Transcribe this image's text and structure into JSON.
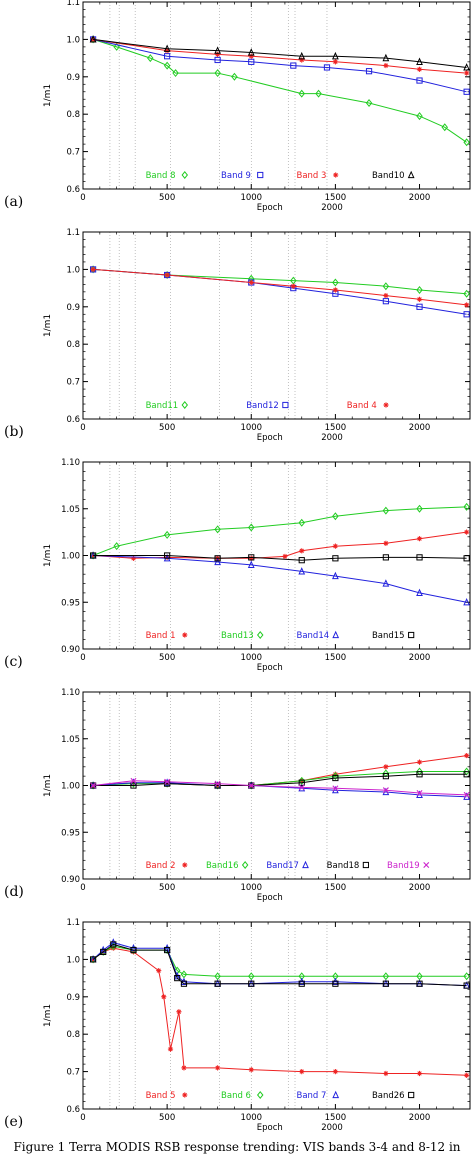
{
  "caption": "Figure 1 Terra MODIS RSB response trending: VIS bands 3-4 and 8-12 in",
  "chart_data": [
    {
      "id": "a",
      "type": "line",
      "panel_label": "(a)",
      "ylabel": "1/m1",
      "xlabel": "Epoch",
      "xlabel_extra": "2000",
      "xlim": [
        0,
        2300
      ],
      "ylim": [
        0.6,
        1.1
      ],
      "xticks": [
        0,
        500,
        1000,
        1500,
        2000
      ],
      "yticks": [
        0.6,
        0.7,
        0.8,
        0.9,
        1.0,
        1.1
      ],
      "ytick_labels": [
        "0.6",
        "0.7",
        "0.8",
        "0.9",
        "1.0",
        "1.1"
      ],
      "event_lines": [
        160,
        215,
        310,
        520,
        810,
        1000,
        1220,
        1260,
        1450
      ],
      "legend_position": "bottom-inside",
      "series": [
        {
          "name": "Band 8",
          "color": "#22cc22",
          "marker": "diamond",
          "x": [
            60,
            200,
            400,
            500,
            550,
            800,
            900,
            1300,
            1400,
            1700,
            2000,
            2150,
            2280
          ],
          "y": [
            1.0,
            0.98,
            0.95,
            0.93,
            0.91,
            0.91,
            0.9,
            0.855,
            0.855,
            0.83,
            0.795,
            0.765,
            0.725
          ]
        },
        {
          "name": "Band 9",
          "color": "#2222dd",
          "marker": "square",
          "x": [
            60,
            500,
            800,
            1000,
            1250,
            1450,
            1700,
            2000,
            2280
          ],
          "y": [
            1.0,
            0.955,
            0.945,
            0.94,
            0.93,
            0.925,
            0.915,
            0.89,
            0.86
          ]
        },
        {
          "name": "Band 3",
          "color": "#ee2222",
          "marker": "star",
          "x": [
            60,
            500,
            800,
            1000,
            1300,
            1500,
            1800,
            2000,
            2280
          ],
          "y": [
            1.0,
            0.97,
            0.96,
            0.955,
            0.945,
            0.94,
            0.93,
            0.92,
            0.91
          ]
        },
        {
          "name": "Band10",
          "color": "#000000",
          "marker": "triangle",
          "x": [
            60,
            500,
            800,
            1000,
            1300,
            1500,
            1800,
            2000,
            2280
          ],
          "y": [
            1.0,
            0.975,
            0.97,
            0.965,
            0.955,
            0.955,
            0.95,
            0.94,
            0.925
          ]
        }
      ]
    },
    {
      "id": "b",
      "type": "line",
      "panel_label": "(b)",
      "ylabel": "1/m1",
      "xlabel": "Epoch",
      "xlabel_extra": "2000",
      "xlim": [
        0,
        2300
      ],
      "ylim": [
        0.6,
        1.1
      ],
      "xticks": [
        0,
        500,
        1000,
        1500,
        2000
      ],
      "yticks": [
        0.6,
        0.7,
        0.8,
        0.9,
        1.0,
        1.1
      ],
      "ytick_labels": [
        "0.6",
        "0.7",
        "0.8",
        "0.9",
        "1.0",
        "1.1"
      ],
      "event_lines": [
        160,
        215,
        310,
        520,
        810,
        1000,
        1220,
        1260,
        1450
      ],
      "legend_position": "bottom-inside",
      "series": [
        {
          "name": "Band11",
          "color": "#22cc22",
          "marker": "diamond",
          "x": [
            60,
            500,
            1000,
            1250,
            1500,
            1800,
            2000,
            2280
          ],
          "y": [
            1.0,
            0.985,
            0.975,
            0.97,
            0.965,
            0.955,
            0.945,
            0.935
          ]
        },
        {
          "name": "Band12",
          "color": "#2222dd",
          "marker": "square",
          "x": [
            60,
            500,
            1000,
            1250,
            1500,
            1800,
            2000,
            2280
          ],
          "y": [
            1.0,
            0.985,
            0.965,
            0.95,
            0.935,
            0.915,
            0.9,
            0.88
          ]
        },
        {
          "name": "Band 4",
          "color": "#ee2222",
          "marker": "star",
          "x": [
            60,
            500,
            1000,
            1250,
            1500,
            1800,
            2000,
            2280
          ],
          "y": [
            1.0,
            0.985,
            0.965,
            0.955,
            0.945,
            0.93,
            0.92,
            0.905
          ]
        }
      ]
    },
    {
      "id": "c",
      "type": "line",
      "panel_label": "(c)",
      "ylabel": "1/m1",
      "xlabel": "Epoch",
      "xlabel_extra": "",
      "xlim": [
        0,
        2300
      ],
      "ylim": [
        0.9,
        1.1
      ],
      "xticks": [
        0,
        500,
        1000,
        1500,
        2000
      ],
      "yticks": [
        0.9,
        0.95,
        1.0,
        1.05,
        1.1
      ],
      "ytick_labels": [
        "0.90",
        "0.95",
        "1.00",
        "1.05",
        "1.10"
      ],
      "event_lines": [
        160,
        215,
        310,
        520,
        810,
        1000,
        1220,
        1260,
        1450
      ],
      "legend_position": "bottom-inside",
      "series": [
        {
          "name": "Band 1",
          "color": "#ee2222",
          "marker": "star",
          "x": [
            60,
            300,
            500,
            800,
            1000,
            1200,
            1300,
            1500,
            1800,
            2000,
            2280
          ],
          "y": [
            1.0,
            0.997,
            0.998,
            0.997,
            0.997,
            0.999,
            1.005,
            1.01,
            1.013,
            1.018,
            1.025
          ]
        },
        {
          "name": "Band13",
          "color": "#22cc22",
          "marker": "diamond",
          "x": [
            60,
            200,
            500,
            800,
            1000,
            1300,
            1500,
            1800,
            2000,
            2280
          ],
          "y": [
            1.0,
            1.01,
            1.022,
            1.028,
            1.03,
            1.035,
            1.042,
            1.048,
            1.05,
            1.052
          ]
        },
        {
          "name": "Band14",
          "color": "#2222dd",
          "marker": "triangle",
          "x": [
            60,
            500,
            800,
            1000,
            1300,
            1500,
            1800,
            2000,
            2280
          ],
          "y": [
            1.0,
            0.997,
            0.993,
            0.99,
            0.983,
            0.978,
            0.97,
            0.96,
            0.95
          ]
        },
        {
          "name": "Band15",
          "color": "#000000",
          "marker": "square",
          "x": [
            60,
            500,
            800,
            1000,
            1300,
            1500,
            1800,
            2000,
            2280
          ],
          "y": [
            1.0,
            1.0,
            0.997,
            0.998,
            0.995,
            0.997,
            0.998,
            0.998,
            0.997
          ]
        }
      ]
    },
    {
      "id": "d",
      "type": "line",
      "panel_label": "(d)",
      "ylabel": "1/m1",
      "xlabel": "Epoch",
      "xlabel_extra": "",
      "xlim": [
        0,
        2300
      ],
      "ylim": [
        0.9,
        1.1
      ],
      "xticks": [
        0,
        500,
        1000,
        1500,
        2000
      ],
      "yticks": [
        0.9,
        0.95,
        1.0,
        1.05,
        1.1
      ],
      "ytick_labels": [
        "0.90",
        "0.95",
        "1.00",
        "1.05",
        "1.10"
      ],
      "event_lines": [
        160,
        215,
        310,
        520,
        810,
        1000,
        1220,
        1260,
        1450
      ],
      "legend_position": "bottom-inside",
      "series": [
        {
          "name": "Band 2",
          "color": "#ee2222",
          "marker": "star",
          "x": [
            60,
            300,
            500,
            800,
            1000,
            1300,
            1500,
            1800,
            2000,
            2280
          ],
          "y": [
            1.0,
            1.003,
            1.002,
            1.0,
            1.0,
            1.005,
            1.012,
            1.02,
            1.025,
            1.032
          ]
        },
        {
          "name": "Band16",
          "color": "#22cc22",
          "marker": "diamond",
          "x": [
            60,
            300,
            500,
            800,
            1000,
            1300,
            1500,
            1800,
            2000,
            2280
          ],
          "y": [
            1.0,
            1.002,
            1.002,
            1.0,
            1.0,
            1.005,
            1.01,
            1.013,
            1.015,
            1.015
          ]
        },
        {
          "name": "Band17",
          "color": "#2222dd",
          "marker": "triangle",
          "x": [
            60,
            300,
            500,
            800,
            1000,
            1300,
            1500,
            1800,
            2000,
            2280
          ],
          "y": [
            1.0,
            1.003,
            1.003,
            1.0,
            1.0,
            0.997,
            0.995,
            0.993,
            0.99,
            0.988
          ]
        },
        {
          "name": "Band18",
          "color": "#000000",
          "marker": "square",
          "x": [
            60,
            300,
            500,
            800,
            1000,
            1300,
            1500,
            1800,
            2000,
            2280
          ],
          "y": [
            1.0,
            1.0,
            1.002,
            1.0,
            1.0,
            1.003,
            1.008,
            1.01,
            1.012,
            1.012
          ]
        },
        {
          "name": "Band19",
          "color": "#cc22cc",
          "marker": "cross",
          "x": [
            60,
            300,
            500,
            800,
            1000,
            1300,
            1500,
            1800,
            2000,
            2280
          ],
          "y": [
            1.0,
            1.005,
            1.004,
            1.002,
            1.0,
            0.998,
            0.997,
            0.995,
            0.992,
            0.99
          ]
        }
      ]
    },
    {
      "id": "e",
      "type": "line",
      "panel_label": "(e)",
      "ylabel": "1/m1",
      "xlabel": "Epoch",
      "xlabel_extra": "2000",
      "xlim": [
        0,
        2300
      ],
      "ylim": [
        0.6,
        1.1
      ],
      "xticks": [
        0,
        500,
        1000,
        1500,
        2000
      ],
      "yticks": [
        0.6,
        0.7,
        0.8,
        0.9,
        1.0,
        1.1
      ],
      "ytick_labels": [
        "0.6",
        "0.7",
        "0.8",
        "0.9",
        "1.0",
        "1.1"
      ],
      "event_lines": [
        160,
        215,
        310,
        520,
        810,
        1000,
        1220,
        1260,
        1450
      ],
      "legend_position": "bottom-inside",
      "series": [
        {
          "name": "Band 5",
          "color": "#ee2222",
          "marker": "star",
          "x": [
            60,
            120,
            180,
            300,
            450,
            480,
            520,
            570,
            600,
            800,
            1000,
            1300,
            1500,
            1800,
            2000,
            2280
          ],
          "y": [
            1.0,
            1.02,
            1.03,
            1.02,
            0.97,
            0.9,
            0.76,
            0.86,
            0.71,
            0.71,
            0.705,
            0.7,
            0.7,
            0.695,
            0.695,
            0.69
          ]
        },
        {
          "name": "Band 6",
          "color": "#22cc22",
          "marker": "diamond",
          "x": [
            60,
            120,
            180,
            300,
            500,
            560,
            600,
            800,
            1000,
            1300,
            1500,
            1800,
            2000,
            2280
          ],
          "y": [
            1.0,
            1.02,
            1.035,
            1.025,
            1.025,
            0.97,
            0.96,
            0.955,
            0.955,
            0.955,
            0.955,
            0.955,
            0.955,
            0.955
          ]
        },
        {
          "name": "Band 7",
          "color": "#2222dd",
          "marker": "triangle",
          "x": [
            60,
            120,
            180,
            300,
            500,
            560,
            600,
            800,
            1000,
            1300,
            1500,
            1800,
            2000,
            2280
          ],
          "y": [
            1.0,
            1.025,
            1.045,
            1.03,
            1.03,
            0.955,
            0.94,
            0.935,
            0.935,
            0.94,
            0.94,
            0.935,
            0.935,
            0.93
          ]
        },
        {
          "name": "Band26",
          "color": "#000000",
          "marker": "square",
          "x": [
            60,
            120,
            180,
            300,
            500,
            560,
            600,
            800,
            1000,
            1300,
            1500,
            1800,
            2000,
            2280
          ],
          "y": [
            1.0,
            1.02,
            1.04,
            1.025,
            1.025,
            0.95,
            0.935,
            0.935,
            0.935,
            0.935,
            0.935,
            0.935,
            0.935,
            0.93
          ]
        }
      ]
    }
  ]
}
